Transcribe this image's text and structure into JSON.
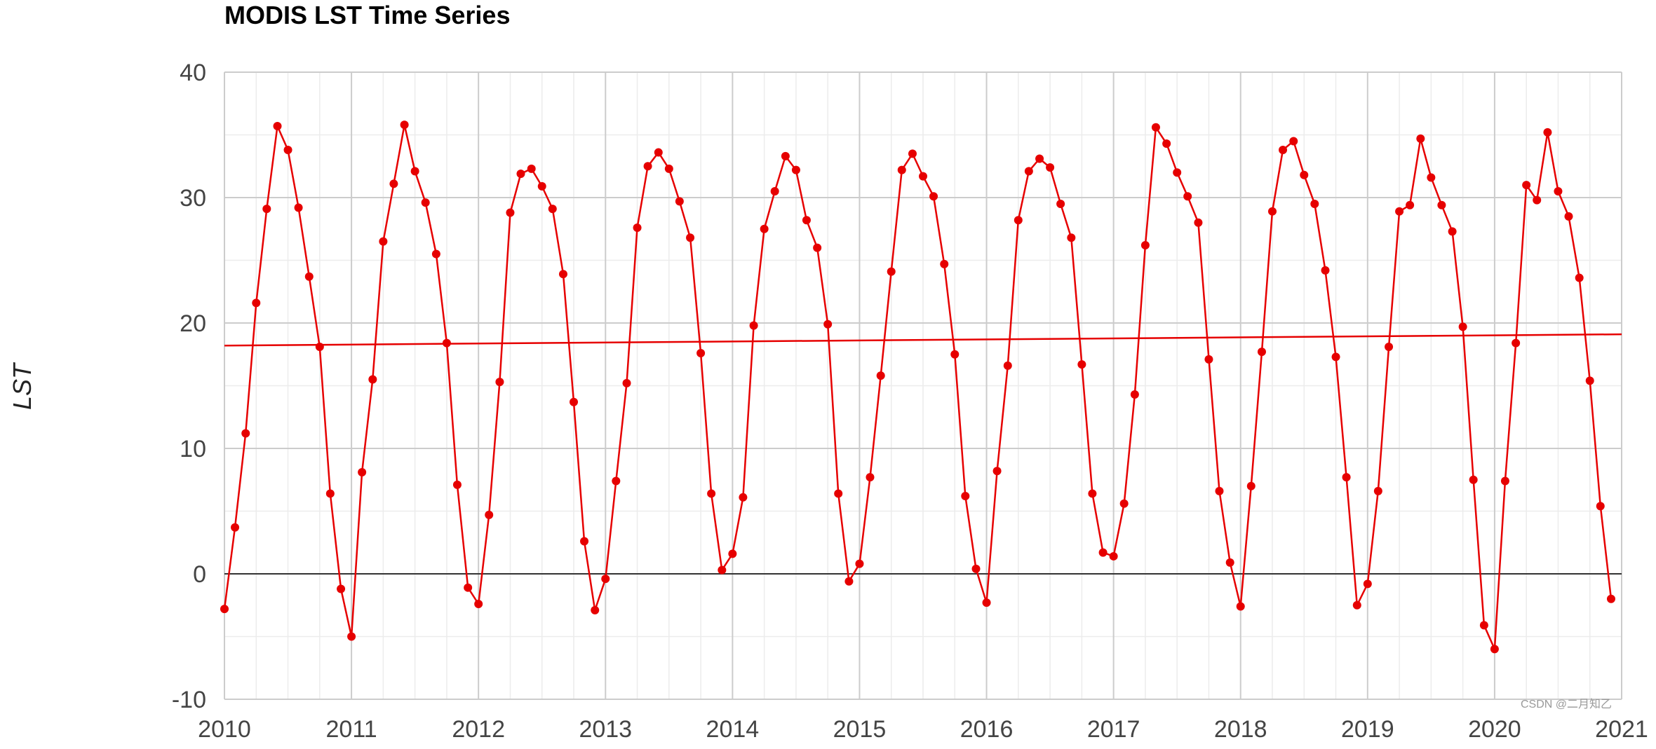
{
  "watermark": "CSDN @二月知乙",
  "chart_data": {
    "type": "line",
    "title": "MODIS LST Time Series",
    "xlabel": "",
    "ylabel": "LST",
    "xlim": [
      2010,
      2021
    ],
    "ylim": [
      -10,
      40
    ],
    "x_ticks": [
      "2010",
      "2011",
      "2012",
      "2013",
      "2014",
      "2015",
      "2016",
      "2017",
      "2018",
      "2019",
      "2020",
      "2021"
    ],
    "y_ticks": [
      "40",
      "30",
      "20",
      "10",
      "0",
      "-10"
    ],
    "grid": true,
    "legend": "none",
    "series_color": "#e60000",
    "series": [
      {
        "x": [
          2010.0,
          2010.083,
          2010.167,
          2010.25,
          2010.333,
          2010.417,
          2010.5,
          2010.583,
          2010.667,
          2010.75,
          2010.833,
          2010.917,
          2011.0,
          2011.083,
          2011.167,
          2011.25,
          2011.333,
          2011.417,
          2011.5,
          2011.583,
          2011.667,
          2011.75,
          2011.833,
          2011.917,
          2012.0,
          2012.083,
          2012.167,
          2012.25,
          2012.333,
          2012.417,
          2012.5,
          2012.583,
          2012.667,
          2012.75,
          2012.833,
          2012.917,
          2013.0,
          2013.083,
          2013.167,
          2013.25,
          2013.333,
          2013.417,
          2013.5,
          2013.583,
          2013.667,
          2013.75,
          2013.833,
          2013.917,
          2014.0,
          2014.083,
          2014.167,
          2014.25,
          2014.333,
          2014.417,
          2014.5,
          2014.583,
          2014.667,
          2014.75,
          2014.833,
          2014.917,
          2015.0,
          2015.083,
          2015.167,
          2015.25,
          2015.333,
          2015.417,
          2015.5,
          2015.583,
          2015.667,
          2015.75,
          2015.833,
          2015.917,
          2016.0,
          2016.083,
          2016.167,
          2016.25,
          2016.333,
          2016.417,
          2016.5,
          2016.583,
          2016.667,
          2016.75,
          2016.833,
          2016.917,
          2017.0,
          2017.083,
          2017.167,
          2017.25,
          2017.333,
          2017.417,
          2017.5,
          2017.583,
          2017.667,
          2017.75,
          2017.833,
          2017.917,
          2018.0,
          2018.083,
          2018.167,
          2018.25,
          2018.333,
          2018.417,
          2018.5,
          2018.583,
          2018.667,
          2018.75,
          2018.833,
          2018.917,
          2019.0,
          2019.083,
          2019.167,
          2019.25,
          2019.333,
          2019.417,
          2019.5,
          2019.583,
          2019.667,
          2019.75,
          2019.833,
          2019.917,
          2020.0,
          2020.083,
          2020.167,
          2020.25,
          2020.333,
          2020.417,
          2020.5,
          2020.583,
          2020.667,
          2020.75,
          2020.833,
          2020.917
        ],
        "y": [
          -2.8,
          3.7,
          11.2,
          21.6,
          29.1,
          35.7,
          33.8,
          29.2,
          23.7,
          18.1,
          6.4,
          -1.2,
          -5.0,
          8.1,
          15.5,
          26.5,
          31.1,
          35.8,
          32.1,
          29.6,
          25.5,
          18.4,
          7.1,
          -1.1,
          -2.4,
          4.7,
          15.3,
          28.8,
          31.9,
          32.3,
          30.9,
          29.1,
          23.9,
          13.7,
          2.6,
          -2.9,
          -0.4,
          7.4,
          15.2,
          27.6,
          32.5,
          33.6,
          32.3,
          29.7,
          26.8,
          17.6,
          6.4,
          0.3,
          1.6,
          6.1,
          19.8,
          27.5,
          30.5,
          33.3,
          32.2,
          28.2,
          26.0,
          19.9,
          6.4,
          -0.6,
          0.8,
          7.7,
          15.8,
          24.1,
          32.2,
          33.5,
          31.7,
          30.1,
          24.7,
          17.5,
          6.2,
          0.4,
          -2.3,
          8.2,
          16.6,
          28.2,
          32.1,
          33.1,
          32.4,
          29.5,
          26.8,
          16.7,
          6.4,
          1.7,
          1.4,
          5.6,
          14.3,
          26.2,
          35.6,
          34.3,
          32.0,
          30.1,
          28.0,
          17.1,
          6.6,
          0.9,
          -2.6,
          7.0,
          17.7,
          28.9,
          33.8,
          34.5,
          31.8,
          29.5,
          24.2,
          17.3,
          7.7,
          -2.5,
          -0.8,
          6.6,
          18.1,
          28.9,
          29.4,
          34.7,
          31.6,
          29.4,
          27.3,
          19.7,
          7.5,
          -4.1,
          -6.0,
          7.4,
          18.4,
          31.0,
          29.8,
          35.2,
          30.5,
          28.5,
          23.6,
          15.4,
          5.4,
          -2.0
        ]
      }
    ],
    "trendline": {
      "x": [
        2010,
        2021
      ],
      "y": [
        18.2,
        19.1
      ]
    }
  }
}
